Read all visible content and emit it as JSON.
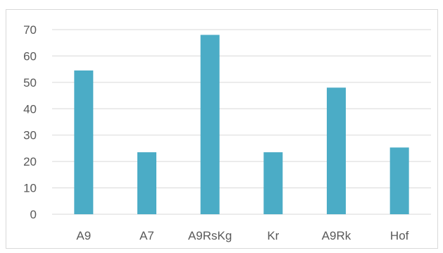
{
  "chart_data": {
    "type": "bar",
    "categories": [
      "A9",
      "A7",
      "A9RsKg",
      "Kr",
      "A9Rk",
      "Hof"
    ],
    "values": [
      54.5,
      23.5,
      68,
      23.5,
      48,
      25.3
    ],
    "ylim": [
      0,
      70
    ],
    "yticks": [
      "0",
      "10",
      "20",
      "30",
      "40",
      "50",
      "60",
      "70"
    ],
    "grid": true,
    "legend": "none",
    "bar_color": "#4bacc6",
    "grid_color": "#d9d9d9"
  }
}
